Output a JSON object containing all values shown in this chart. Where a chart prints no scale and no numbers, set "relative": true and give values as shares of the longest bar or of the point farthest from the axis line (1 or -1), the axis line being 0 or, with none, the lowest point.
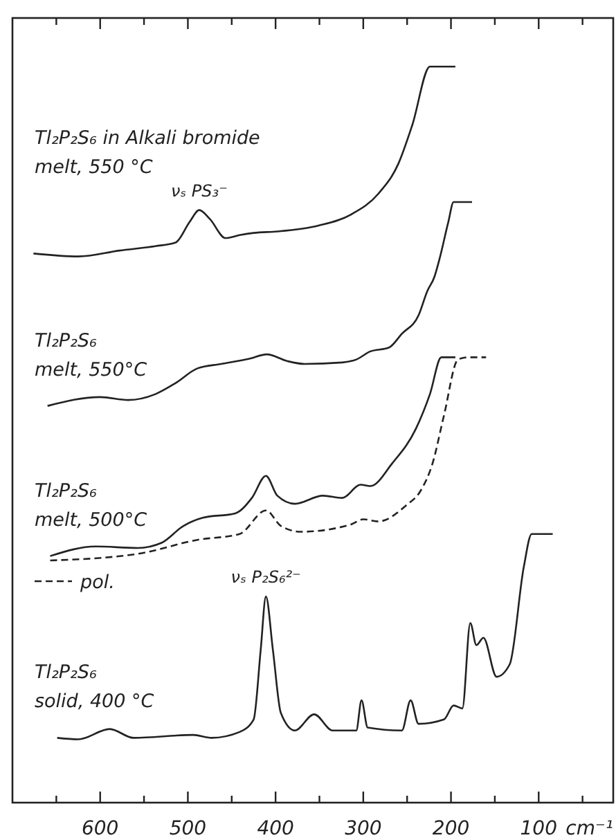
{
  "chart_data": {
    "type": "line",
    "relative": true,
    "xlabel": "cm⁻¹",
    "xlim": [
      700,
      15
    ],
    "xticks": [
      {
        "value": 650,
        "label": null
      },
      600,
      {
        "value": 550,
        "label": null
      },
      500,
      {
        "value": 450,
        "label": null
      },
      400,
      {
        "value": 350,
        "label": null
      },
      300,
      {
        "value": 250,
        "label": null
      },
      200,
      {
        "value": 150,
        "label": null
      },
      100,
      {
        "value": 50,
        "label": null
      }
    ],
    "tick_labels": "x",
    "series": [
      {
        "name": "Tl₂P₂S₆ in Alkali bromide\nmelt, 550 °C",
        "color": "#222222",
        "line_style": "solid",
        "x": [
          676,
          625,
          578,
          537,
          514,
          498,
          487,
          475,
          457,
          441,
          425,
          398,
          351,
          314,
          283,
          260,
          244,
          224,
          195
        ],
        "values": [
          0.746,
          0.742,
          0.75,
          0.756,
          0.761,
          0.789,
          0.805,
          0.793,
          0.767,
          0.771,
          0.774,
          0.776,
          0.784,
          0.799,
          0.827,
          0.868,
          0.921,
          1.0,
          1.0
        ]
      },
      {
        "name": "Tl₂P₂S₆\nmelt, 550°C",
        "color": "#222222",
        "line_style": "solid",
        "x": [
          660,
          600,
          568,
          537,
          514,
          489,
          462,
          430,
          410,
          387,
          367,
          324,
          308,
          292,
          271,
          256,
          237,
          227,
          219,
          213,
          203,
          197,
          176
        ],
        "values": [
          0.539,
          0.551,
          0.547,
          0.555,
          0.57,
          0.59,
          0.596,
          0.603,
          0.609,
          0.6,
          0.596,
          0.598,
          0.602,
          0.613,
          0.618,
          0.637,
          0.662,
          0.695,
          0.714,
          0.739,
          0.789,
          0.816,
          0.816
        ]
      },
      {
        "name": "Tl₂P₂S₆\nmelt, 500°C",
        "color": "#222222",
        "line_style": "solid",
        "x": [
          657,
          605,
          557,
          530,
          505,
          483,
          446,
          427,
          411,
          398,
          378,
          346,
          324,
          303,
          292,
          267,
          240,
          224,
          211,
          195
        ],
        "values": [
          0.335,
          0.348,
          0.346,
          0.353,
          0.376,
          0.387,
          0.393,
          0.414,
          0.444,
          0.417,
          0.406,
          0.417,
          0.414,
          0.432,
          0.43,
          0.461,
          0.508,
          0.555,
          0.605,
          0.605
        ]
      },
      {
        "name": "pol.",
        "color": "#222222",
        "line_style": "dashed",
        "x": [
          657,
          557,
          489,
          441,
          411,
          394,
          371,
          314,
          300,
          283,
          251,
          235,
          221,
          208,
          192,
          181,
          160
        ],
        "values": [
          0.329,
          0.338,
          0.357,
          0.365,
          0.397,
          0.376,
          0.368,
          0.378,
          0.385,
          0.382,
          0.404,
          0.423,
          0.461,
          0.526,
          0.602,
          0.605,
          0.605
        ]
      },
      {
        "name": "Tl₂P₂S₆\nsolid, 400 °C",
        "color": "#222222",
        "line_style": "solid",
        "x": [
          649,
          625,
          589,
          562,
          494,
          473,
          441,
          425,
          417,
          411,
          403,
          394,
          378,
          356,
          335,
          308,
          302,
          295,
          256,
          246,
          237,
          208,
          197,
          187,
          178,
          171,
          163,
          148,
          133,
          117,
          108,
          84
        ],
        "values": [
          0.088,
          0.086,
          0.1,
          0.088,
          0.092,
          0.088,
          0.096,
          0.113,
          0.207,
          0.28,
          0.207,
          0.122,
          0.098,
          0.12,
          0.098,
          0.098,
          0.139,
          0.102,
          0.098,
          0.139,
          0.107,
          0.113,
          0.132,
          0.128,
          0.244,
          0.214,
          0.224,
          0.171,
          0.188,
          0.32,
          0.365,
          0.365
        ]
      }
    ],
    "annotations": [
      {
        "text": "νₛ PS₃⁻",
        "x": 487,
        "y": 0.805
      },
      {
        "text": "νₛ P₂S₆²⁻",
        "x": 411,
        "y": 0.28
      }
    ]
  }
}
